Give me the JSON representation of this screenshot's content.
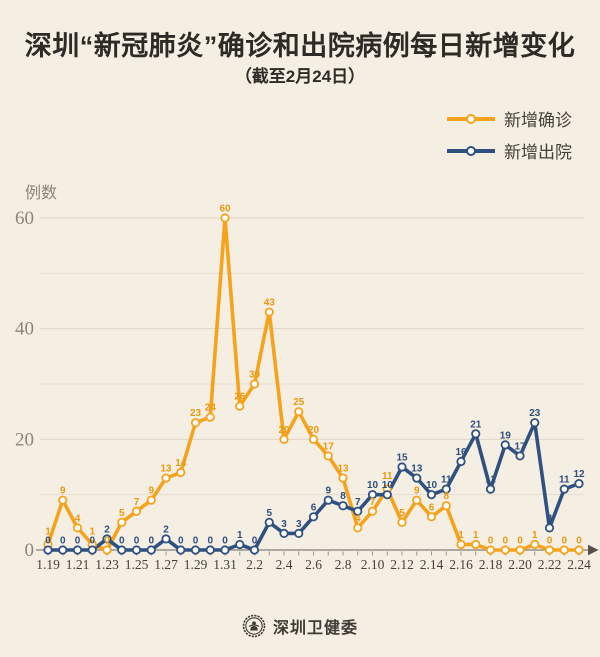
{
  "title": "深圳“新冠肺炎”确诊和出院病例每日新增变化",
  "subtitle": "（截至2月24日）",
  "legend": {
    "items": [
      {
        "label": "新增确诊",
        "color": "#F5A31B"
      },
      {
        "label": "新增出院",
        "color": "#2E5180"
      }
    ]
  },
  "y_axis": {
    "unit_label": "例数",
    "ticks": [
      0,
      20,
      40,
      60
    ]
  },
  "footer": {
    "source_name": "深圳卫健委",
    "logo": "shenzhen-health-commission-emblem"
  },
  "colors": {
    "background": "#F5EEE3",
    "confirmed": "#F5A31B",
    "confirmed_label": "#E89A10",
    "discharged": "#2E5180",
    "discharged_label": "#2E4E7E",
    "title_text": "#2D2B26",
    "x_tick_text": "#45413A",
    "axis_muted": "#8B8578",
    "axis_line": "#97928A",
    "gridline_major": "#DCD4C4",
    "gridline_minor": "#E6DFD1",
    "marker_fill": "#FFFDF8"
  },
  "chart_data": {
    "type": "line",
    "title": "深圳“新冠肺炎”确诊和出院病例每日新增变化",
    "subtitle": "（截至2月24日）",
    "xlabel": "",
    "ylabel": "例数",
    "ylim": [
      0,
      60
    ],
    "grid_step": 10,
    "grid": true,
    "legend_position": "top-right",
    "x_labels_every": 2,
    "categories": [
      "1.19",
      "1.20",
      "1.21",
      "1.22",
      "1.23",
      "1.24",
      "1.25",
      "1.26",
      "1.27",
      "1.28",
      "1.29",
      "1.30",
      "1.31",
      "2.1",
      "2.2",
      "2.3",
      "2.4",
      "2.5",
      "2.6",
      "2.7",
      "2.8",
      "2.9",
      "2.10",
      "2.11",
      "2.12",
      "2.13",
      "2.14",
      "2.15",
      "2.16",
      "2.17",
      "2.18",
      "2.19",
      "2.20",
      "2.21",
      "2.22",
      "2.23",
      "2.24"
    ],
    "series": [
      {
        "name": "新增确诊",
        "color": "#F5A31B",
        "values": [
          1,
          9,
          4,
          1,
          0,
          5,
          7,
          9,
          13,
          14,
          23,
          24,
          60,
          26,
          30,
          43,
          20,
          25,
          20,
          17,
          13,
          4,
          7,
          11,
          5,
          9,
          6,
          8,
          1,
          1,
          0,
          0,
          0,
          1,
          0,
          0,
          0
        ]
      },
      {
        "name": "新增出院",
        "color": "#2E5180",
        "values": [
          0,
          0,
          0,
          0,
          2,
          0,
          0,
          0,
          2,
          0,
          0,
          0,
          0,
          1,
          0,
          5,
          3,
          3,
          6,
          9,
          8,
          7,
          10,
          10,
          15,
          13,
          10,
          11,
          16,
          21,
          11,
          19,
          17,
          23,
          4,
          11,
          12
        ]
      }
    ]
  }
}
